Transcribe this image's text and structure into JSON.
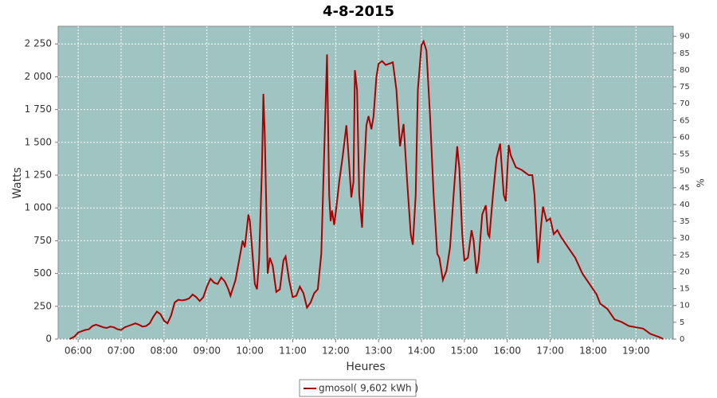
{
  "chart_data": {
    "type": "line",
    "title": "4-8-2015",
    "x_label": "Heures",
    "y_label": "Watts",
    "y2_label": "%",
    "xlim": [
      "05:32",
      "19:52"
    ],
    "xticks": [
      "06:00",
      "07:00",
      "08:00",
      "09:00",
      "10:00",
      "11:00",
      "12:00",
      "13:00",
      "14:00",
      "15:00",
      "16:00",
      "17:00",
      "18:00",
      "19:00"
    ],
    "ylim": [
      0,
      2385
    ],
    "yticks": [
      0,
      250,
      500,
      750,
      {
        "value": 1000,
        "label": "1 000"
      },
      {
        "value": 1250,
        "label": "1 250"
      },
      {
        "value": 1500,
        "label": "1 500"
      },
      {
        "value": 1750,
        "label": "1 750"
      },
      {
        "value": 2000,
        "label": "2 000"
      },
      {
        "value": 2250,
        "label": "2 250"
      }
    ],
    "y2lim": [
      0,
      93
    ],
    "y2ticks": [
      0,
      5,
      10,
      15,
      20,
      25,
      30,
      35,
      40,
      45,
      50,
      55,
      60,
      65,
      70,
      75,
      80,
      85,
      90
    ],
    "grid": true,
    "background": "#a0c4c2",
    "legend": "bottom",
    "x": [
      "05:48",
      "05:55",
      "06:00",
      "06:05",
      "06:10",
      "06:15",
      "06:20",
      "06:25",
      "06:30",
      "06:35",
      "06:40",
      "06:45",
      "06:50",
      "06:55",
      "07:00",
      "07:05",
      "07:10",
      "07:15",
      "07:20",
      "07:25",
      "07:30",
      "07:35",
      "07:40",
      "07:45",
      "07:50",
      "07:55",
      "08:00",
      "08:05",
      "08:10",
      "08:15",
      "08:20",
      "08:25",
      "08:30",
      "08:35",
      "08:40",
      "08:45",
      "08:50",
      "08:55",
      "09:00",
      "09:05",
      "09:10",
      "09:15",
      "09:20",
      "09:25",
      "09:30",
      "09:33",
      "09:40",
      "09:45",
      "09:50",
      "09:53",
      "09:58",
      "10:00",
      "10:03",
      "10:07",
      "10:10",
      "10:13",
      "10:17",
      "10:19",
      "10:21",
      "10:25",
      "10:28",
      "10:32",
      "10:37",
      "10:42",
      "10:47",
      "10:50",
      "10:55",
      "11:00",
      "11:05",
      "11:10",
      "11:15",
      "11:20",
      "11:25",
      "11:30",
      "11:35",
      "11:40",
      "11:45",
      "11:48",
      "11:51",
      "11:53",
      "11:55",
      "11:58",
      "12:02",
      "12:05",
      "12:10",
      "12:15",
      "12:18",
      "12:22",
      "12:25",
      "12:27",
      "12:30",
      "12:33",
      "12:37",
      "12:40",
      "12:43",
      "12:46",
      "12:50",
      "12:53",
      "12:57",
      "13:00",
      "13:05",
      "13:10",
      "13:15",
      "13:20",
      "13:25",
      "13:30",
      "13:35",
      "13:40",
      "13:45",
      "13:48",
      "13:52",
      "13:55",
      "14:00",
      "14:03",
      "14:07",
      "14:12",
      "14:17",
      "14:22",
      "14:25",
      "14:30",
      "14:35",
      "14:40",
      "14:45",
      "14:50",
      "14:53",
      "14:57",
      "15:00",
      "15:05",
      "15:10",
      "15:13",
      "15:17",
      "15:20",
      "15:25",
      "15:30",
      "15:33",
      "15:35",
      "15:40",
      "15:45",
      "15:50",
      "15:55",
      "15:58",
      "16:02",
      "16:05",
      "16:12",
      "16:20",
      "16:30",
      "16:35",
      "16:38",
      "16:43",
      "16:47",
      "16:50",
      "16:55",
      "17:00",
      "17:05",
      "17:10",
      "17:15",
      "17:25",
      "17:35",
      "17:45",
      "17:55",
      "18:05",
      "18:10",
      "18:20",
      "18:30",
      "18:40",
      "18:50",
      "19:00",
      "19:10",
      "19:15",
      "19:20",
      "19:30",
      "19:35",
      "19:38"
    ],
    "series": [
      {
        "name": "gmosol( 9,602 kWh )",
        "color": "#aa0000",
        "values": [
          0,
          20,
          50,
          60,
          70,
          75,
          100,
          110,
          100,
          90,
          85,
          95,
          90,
          75,
          70,
          90,
          100,
          110,
          120,
          110,
          95,
          100,
          120,
          170,
          210,
          190,
          140,
          120,
          180,
          280,
          300,
          295,
          300,
          310,
          340,
          320,
          290,
          320,
          400,
          460,
          430,
          420,
          470,
          440,
          380,
          330,
          450,
          600,
          750,
          700,
          950,
          900,
          700,
          420,
          380,
          600,
          1300,
          1870,
          1550,
          500,
          620,
          560,
          360,
          380,
          600,
          630,
          450,
          320,
          330,
          400,
          350,
          240,
          280,
          350,
          380,
          650,
          1600,
          2170,
          1100,
          900,
          980,
          870,
          1050,
          1200,
          1400,
          1630,
          1400,
          1080,
          1200,
          2050,
          1900,
          1100,
          850,
          1300,
          1630,
          1700,
          1600,
          1700,
          2000,
          2100,
          2120,
          2090,
          2100,
          2110,
          1900,
          1470,
          1640,
          1200,
          800,
          720,
          1100,
          1900,
          2240,
          2270,
          2200,
          1700,
          1100,
          650,
          620,
          450,
          520,
          700,
          1100,
          1470,
          1300,
          800,
          600,
          620,
          830,
          750,
          500,
          600,
          950,
          1020,
          800,
          780,
          1100,
          1380,
          1490,
          1100,
          1050,
          1480,
          1400,
          1310,
          1290,
          1250,
          1250,
          1100,
          580,
          850,
          1010,
          900,
          920,
          800,
          830,
          780,
          700,
          620,
          500,
          420,
          340,
          270,
          230,
          150,
          130,
          100,
          90,
          80,
          60,
          40,
          20,
          10,
          0
        ]
      }
    ]
  }
}
